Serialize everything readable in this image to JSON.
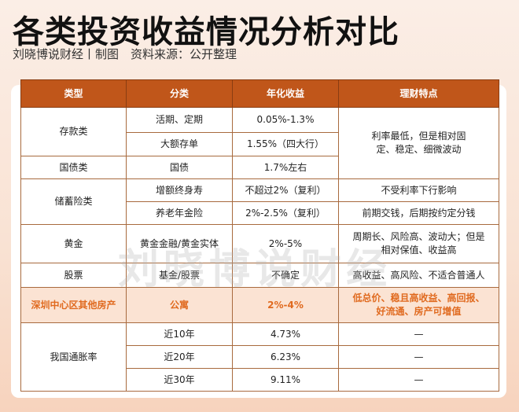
{
  "title": "各类投资收益情况分析对比",
  "subtitle": "刘晓博说财经丨制图　资料来源：公开整理",
  "watermark": "刘晓博说财经",
  "headers": [
    "类型",
    "分类",
    "年化收益",
    "理财特点"
  ],
  "rows": {
    "deposit": {
      "type": "存款类",
      "a": {
        "cat": "活期、定期",
        "yield": "0.05%-1.3%"
      },
      "b": {
        "cat": "大额存单",
        "yield": "1.55%（四大行）"
      },
      "feature": "利率最低，但是相对固定、稳定、细微波动"
    },
    "bond": {
      "type": "国债类",
      "cat": "国债",
      "yield": "1.7%左右"
    },
    "insurance": {
      "type": "储蓄险类",
      "a": {
        "cat": "增额终身寿",
        "yield": "不超过2%（复利）",
        "feature": "不受利率下行影响"
      },
      "b": {
        "cat": "养老年金险",
        "yield": "2%-2.5%（复利）",
        "feature": "前期交钱，后期按约定分钱"
      }
    },
    "gold": {
      "type": "黄金",
      "cat": "黄金金融/黄金实体",
      "yield": "2%-5%",
      "feature": "周期长、风险高、波动大；但是相对保值、收益高"
    },
    "stock": {
      "type": "股票",
      "cat": "基金/股票",
      "yield": "不确定",
      "feature": "高收益、高风险、不适合普通人"
    },
    "property": {
      "type": "深圳中心区其他房产",
      "cat": "公寓",
      "yield": "2%-4%",
      "feature": "低总价、稳且高收益、高回报、好流通、房产可增值"
    },
    "inflation": {
      "type": "我国通胀率",
      "items": [
        {
          "cat": "近10年",
          "yield": "4.73%",
          "feature": "—"
        },
        {
          "cat": "近20年",
          "yield": "6.23%",
          "feature": "—"
        },
        {
          "cat": "近30年",
          "yield": "9.11%",
          "feature": "—"
        }
      ]
    }
  }
}
